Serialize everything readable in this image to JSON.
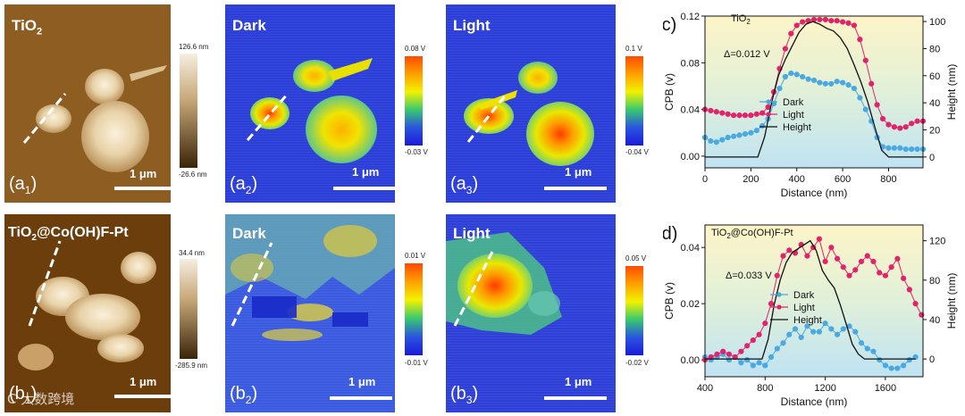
{
  "panels": {
    "a1": {
      "title_main": "TiO",
      "title_sub": "2",
      "label_main": "(a",
      "label_sub": "1",
      "label_close": ")",
      "scalebar": "1 μm",
      "cbar_top": "126.6 nm",
      "cbar_bottom": "-26.6 nm"
    },
    "a2": {
      "title": "Dark",
      "label_main": "(a",
      "label_sub": "2",
      "label_close": ")",
      "scalebar": "1 μm",
      "cbar_top": "0.08 V",
      "cbar_bottom": "-0.03 V"
    },
    "a3": {
      "title": "Light",
      "label_main": "(a",
      "label_sub": "3",
      "label_close": ")",
      "scalebar": "1 μm",
      "cbar_top": "0.1 V",
      "cbar_bottom": "-0.04 V"
    },
    "b1": {
      "title_pre": "TiO",
      "title_sub": "2",
      "title_post": "@Co(OH)F-Pt",
      "label_main": "(b",
      "label_sub": "1",
      "label_close": ")",
      "scalebar": "1 μm",
      "cbar_top": "34.4 nm",
      "cbar_bottom": "-285.9 nm"
    },
    "b2": {
      "title": "Dark",
      "label_main": "(b",
      "label_sub": "2",
      "label_close": ")",
      "scalebar": "1 μm",
      "cbar_top": "0.01 V",
      "cbar_bottom": "-0.01 V"
    },
    "b3": {
      "title": "Light",
      "label_main": "(b",
      "label_sub": "3",
      "label_close": ")",
      "scalebar": "1 μm",
      "cbar_top": "0.05 V",
      "cbar_bottom": "-0.02 V"
    }
  },
  "watermark": "C 大数跨境",
  "colors": {
    "dark": "#4aa9e0",
    "light": "#e2236a",
    "height": "#111111",
    "afm_base": "#8a5a1f"
  },
  "chart_data": [
    {
      "type": "line",
      "panel_label": "(c)",
      "title_main": "TiO",
      "title_sub": "2",
      "annotation": "Δ=0.012 V",
      "xlabel": "Distance (nm)",
      "ylabel": "CPB (v)",
      "y2label": "Height (nm)",
      "xlim": [
        0,
        950
      ],
      "ylim": [
        -0.01,
        0.12
      ],
      "y2lim": [
        -8,
        104
      ],
      "xticks": [
        "0",
        "200",
        "400",
        "600",
        "800"
      ],
      "yticks": [
        "0.00",
        "0.04",
        "0.08",
        "0.12"
      ],
      "y2ticks": [
        "0",
        "20",
        "40",
        "60",
        "80",
        "100"
      ],
      "legend": [
        "Dark",
        "Light",
        "Height"
      ],
      "series": [
        {
          "name": "Dark",
          "axis": "left",
          "x": [
            0,
            25,
            50,
            75,
            100,
            125,
            150,
            175,
            200,
            225,
            250,
            275,
            300,
            325,
            350,
            375,
            400,
            425,
            450,
            475,
            500,
            525,
            550,
            575,
            600,
            625,
            650,
            675,
            700,
            725,
            750,
            775,
            800,
            825,
            850,
            875,
            900,
            925,
            950
          ],
          "y": [
            0.016,
            0.013,
            0.012,
            0.014,
            0.016,
            0.017,
            0.018,
            0.019,
            0.02,
            0.022,
            0.026,
            0.032,
            0.045,
            0.058,
            0.068,
            0.071,
            0.07,
            0.068,
            0.066,
            0.065,
            0.063,
            0.062,
            0.062,
            0.064,
            0.063,
            0.061,
            0.058,
            0.05,
            0.04,
            0.03,
            0.016,
            0.008,
            0.007,
            0.007,
            0.007,
            0.006,
            0.006,
            0.006,
            0.006
          ]
        },
        {
          "name": "Light",
          "axis": "left",
          "x": [
            0,
            25,
            50,
            75,
            100,
            125,
            150,
            175,
            200,
            225,
            250,
            275,
            300,
            325,
            350,
            375,
            400,
            425,
            450,
            475,
            500,
            525,
            550,
            575,
            600,
            625,
            650,
            675,
            700,
            725,
            750,
            775,
            800,
            825,
            850,
            875,
            900,
            925,
            950
          ],
          "y": [
            0.04,
            0.039,
            0.038,
            0.037,
            0.036,
            0.035,
            0.035,
            0.035,
            0.035,
            0.036,
            0.037,
            0.042,
            0.055,
            0.075,
            0.092,
            0.105,
            0.112,
            0.115,
            0.116,
            0.117,
            0.117,
            0.117,
            0.116,
            0.116,
            0.115,
            0.114,
            0.112,
            0.1,
            0.082,
            0.062,
            0.044,
            0.032,
            0.027,
            0.025,
            0.024,
            0.025,
            0.028,
            0.03,
            0.03
          ]
        },
        {
          "name": "Height",
          "axis": "right",
          "x": [
            0,
            50,
            100,
            150,
            200,
            230,
            260,
            290,
            320,
            350,
            380,
            410,
            440,
            470,
            500,
            530,
            560,
            590,
            620,
            650,
            680,
            710,
            740,
            770,
            800,
            850,
            900,
            950
          ],
          "y": [
            0,
            0,
            0,
            0,
            0,
            0,
            15,
            40,
            60,
            72,
            82,
            92,
            98,
            100,
            98,
            95,
            93,
            88,
            80,
            68,
            55,
            40,
            22,
            5,
            0,
            0,
            0,
            0
          ]
        }
      ]
    },
    {
      "type": "line",
      "panel_label": "(d)",
      "title_pre": "TiO",
      "title_sub": "2",
      "title_post": "@Co(OH)F-Pt",
      "annotation": "Δ=0.033 V",
      "xlabel": "Distance (nm)",
      "ylabel": "CPB (v)",
      "y2label": "Height (nm)",
      "xlim": [
        400,
        1850
      ],
      "ylim": [
        -0.006,
        0.048
      ],
      "y2lim": [
        -18,
        136
      ],
      "xticks": [
        "400",
        "800",
        "1200",
        "1600"
      ],
      "yticks": [
        "0.00",
        "0.02",
        "0.04"
      ],
      "y2ticks": [
        "0",
        "40",
        "80",
        "120"
      ],
      "legend": [
        "Dark",
        "Light",
        "Height"
      ],
      "series": [
        {
          "name": "Dark",
          "axis": "left",
          "x": [
            400,
            440,
            480,
            520,
            560,
            600,
            640,
            680,
            720,
            760,
            800,
            840,
            880,
            920,
            960,
            1000,
            1040,
            1080,
            1120,
            1160,
            1200,
            1240,
            1280,
            1320,
            1360,
            1400,
            1440,
            1480,
            1520,
            1560,
            1600,
            1640,
            1680,
            1720,
            1760,
            1800
          ],
          "y": [
            0.001,
            0.0,
            0.001,
            0.002,
            0.0,
            0.001,
            -0.001,
            0.0,
            -0.002,
            -0.001,
            -0.002,
            0.001,
            0.004,
            0.006,
            0.009,
            0.011,
            0.008,
            0.012,
            0.01,
            0.01,
            0.013,
            0.011,
            0.009,
            0.011,
            0.012,
            0.01,
            0.006,
            0.004,
            0.003,
            0.0,
            -0.002,
            -0.003,
            -0.003,
            -0.002,
            0.0,
            0.001
          ]
        },
        {
          "name": "Light",
          "axis": "left",
          "x": [
            400,
            440,
            480,
            520,
            560,
            600,
            640,
            680,
            720,
            760,
            800,
            840,
            880,
            920,
            960,
            1000,
            1040,
            1080,
            1120,
            1160,
            1200,
            1240,
            1280,
            1320,
            1360,
            1400,
            1440,
            1480,
            1520,
            1560,
            1600,
            1640,
            1680,
            1720,
            1760,
            1800,
            1840
          ],
          "y": [
            0.0,
            0.001,
            0.002,
            0.003,
            0.002,
            0.001,
            0.003,
            0.005,
            0.007,
            0.009,
            0.013,
            0.02,
            0.03,
            0.037,
            0.039,
            0.038,
            0.041,
            0.037,
            0.04,
            0.043,
            0.035,
            0.04,
            0.036,
            0.033,
            0.03,
            0.032,
            0.035,
            0.037,
            0.035,
            0.031,
            0.03,
            0.033,
            0.036,
            0.029,
            0.025,
            0.02,
            0.016
          ]
        },
        {
          "name": "Height",
          "axis": "right",
          "x": [
            400,
            500,
            600,
            700,
            780,
            820,
            860,
            900,
            940,
            980,
            1020,
            1060,
            1100,
            1140,
            1180,
            1220,
            1260,
            1300,
            1340,
            1380,
            1420,
            1460,
            1500,
            1560,
            1640,
            1720,
            1800
          ],
          "y": [
            0,
            0,
            0,
            0,
            0,
            20,
            55,
            80,
            98,
            108,
            112,
            116,
            120,
            110,
            90,
            80,
            72,
            55,
            35,
            15,
            5,
            0,
            0,
            0,
            0,
            0,
            0
          ]
        }
      ]
    }
  ]
}
